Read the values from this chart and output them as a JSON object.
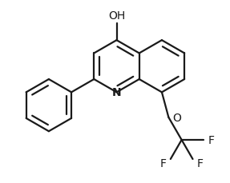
{
  "background_color": "#ffffff",
  "line_color": "#1a1a1a",
  "line_width": 1.6,
  "label_OH": "OH",
  "label_N": "N",
  "label_O": "O",
  "label_F1": "F",
  "label_F2": "F",
  "label_F3": "F",
  "font_size_labels": 10,
  "figsize": [
    2.87,
    2.3
  ],
  "dpi": 100
}
